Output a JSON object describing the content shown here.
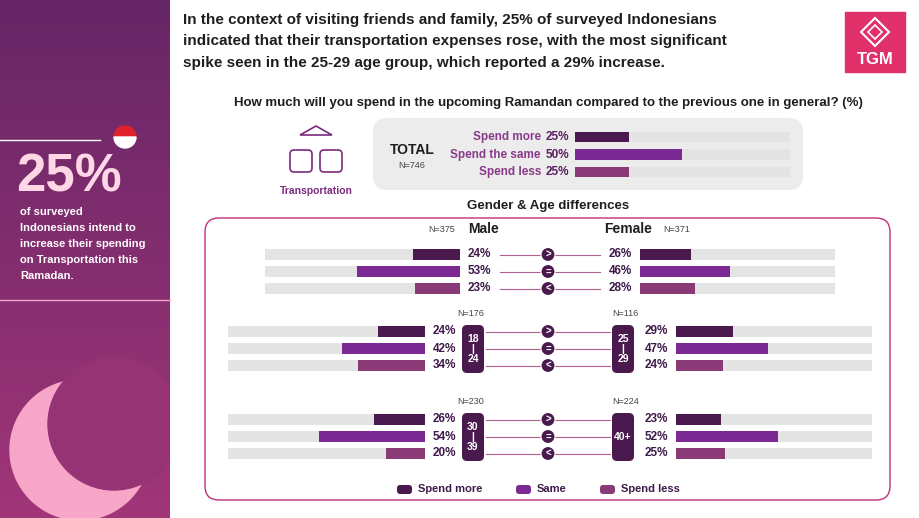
{
  "header": {
    "lines": [
      "In the context of visiting friends and family, 25% of surveyed Indonesians",
      "indicated that their transportation expenses rose, with the most significant",
      "spike seen in the 25-29 age group, which reported a 29% increase."
    ],
    "logo": "TGM"
  },
  "side_panel": {
    "big_number": "25%",
    "lines": [
      "of surveyed",
      "Indonesians intend to",
      "increase their spending",
      "on Transportation this",
      "Ramadan."
    ]
  },
  "question": "How much will you spend in the upcoming Ramandan compared to the previous one in general? (%)",
  "icon_label": "Transportation",
  "section_title": "Gender & Age differences",
  "symbols": [
    ">",
    "=",
    "<"
  ],
  "chart_data": [
    {
      "type": "bar",
      "orientation": "horizontal",
      "title": "TOTAL",
      "subtitle": "N=746",
      "categories": [
        "Spend more",
        "Spend the same",
        "Spend less"
      ],
      "values": [
        25,
        50,
        25
      ],
      "value_labels": [
        "25%",
        "50%",
        "25%"
      ],
      "colors": [
        "#4a1a4e",
        "#7b2a93",
        "#8b3a78"
      ],
      "xlim": [
        0,
        100
      ],
      "data_labels": true,
      "tick_labels": false
    },
    {
      "type": "bar",
      "orientation": "horizontal",
      "title": "Male",
      "subtitle": "N=375",
      "categories": [
        "Spend more",
        "Same",
        "Spend less"
      ],
      "values": [
        24,
        53,
        23
      ],
      "value_labels": [
        "24%",
        "53%",
        "23%"
      ],
      "colors": [
        "#4a1a4e",
        "#7b2a93",
        "#8b3a78"
      ],
      "xlim": [
        0,
        100
      ],
      "data_labels": true,
      "tick_labels": false
    },
    {
      "type": "bar",
      "orientation": "horizontal",
      "title": "Female",
      "subtitle": "N=371",
      "categories": [
        "Spend more",
        "Same",
        "Spend less"
      ],
      "values": [
        26,
        46,
        28
      ],
      "value_labels": [
        "26%",
        "46%",
        "28%"
      ],
      "colors": [
        "#4a1a4e",
        "#7b2a93",
        "#8b3a78"
      ],
      "xlim": [
        0,
        100
      ],
      "data_labels": true,
      "tick_labels": false
    },
    {
      "type": "bar",
      "orientation": "horizontal",
      "title": "18\n|\n24",
      "subtitle": "N=176",
      "categories": [
        "Spend more",
        "Same",
        "Spend less"
      ],
      "values": [
        24,
        42,
        34
      ],
      "value_labels": [
        "24%",
        "42%",
        "34%"
      ],
      "colors": [
        "#4a1a4e",
        "#7b2a93",
        "#8b3a78"
      ],
      "xlim": [
        0,
        100
      ],
      "data_labels": true,
      "tick_labels": false
    },
    {
      "type": "bar",
      "orientation": "horizontal",
      "title": "25\n|\n29",
      "subtitle": "N=116",
      "categories": [
        "Spend more",
        "Same",
        "Spend less"
      ],
      "values": [
        29,
        47,
        24
      ],
      "value_labels": [
        "29%",
        "47%",
        "24%"
      ],
      "colors": [
        "#4a1a4e",
        "#7b2a93",
        "#8b3a78"
      ],
      "xlim": [
        0,
        100
      ],
      "data_labels": true,
      "tick_labels": false
    },
    {
      "type": "bar",
      "orientation": "horizontal",
      "title": "30\n|\n39",
      "subtitle": "N=230",
      "categories": [
        "Spend more",
        "Same",
        "Spend less"
      ],
      "values": [
        26,
        54,
        20
      ],
      "value_labels": [
        "26%",
        "54%",
        "20%"
      ],
      "colors": [
        "#4a1a4e",
        "#7b2a93",
        "#8b3a78"
      ],
      "xlim": [
        0,
        100
      ],
      "data_labels": true,
      "tick_labels": false
    },
    {
      "type": "bar",
      "orientation": "horizontal",
      "title": "40+",
      "subtitle": "N=224",
      "categories": [
        "Spend more",
        "Same",
        "Spend less"
      ],
      "values": [
        23,
        52,
        25
      ],
      "value_labels": [
        "23%",
        "52%",
        "25%"
      ],
      "colors": [
        "#4a1a4e",
        "#7b2a93",
        "#8b3a78"
      ],
      "xlim": [
        0,
        100
      ],
      "data_labels": true,
      "tick_labels": false
    }
  ]
}
